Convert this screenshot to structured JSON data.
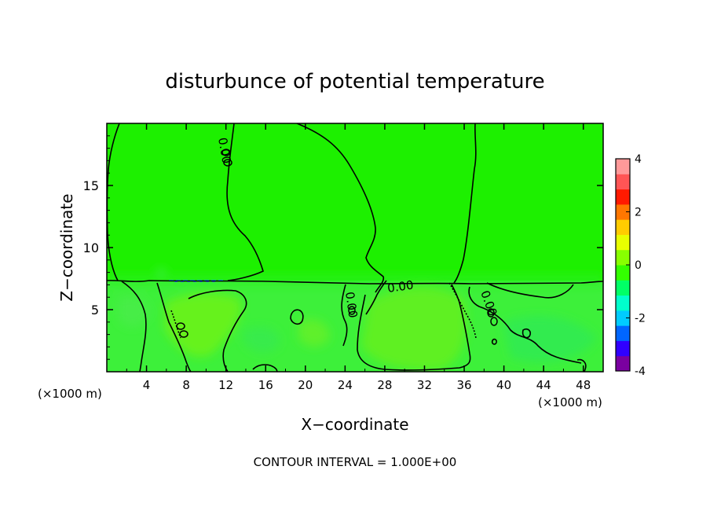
{
  "chart_data": {
    "type": "heatmap",
    "title": "disturbunce of potential temperature",
    "xlabel": "X−coordinate",
    "ylabel": "Z−coordinate",
    "x_unit_left": "(×1000 m)",
    "x_unit_right": "(×1000 m)",
    "xlim": [
      0,
      50
    ],
    "ylim": [
      0,
      20
    ],
    "x_ticks": [
      4,
      8,
      12,
      16,
      20,
      24,
      28,
      32,
      36,
      40,
      44,
      48
    ],
    "y_ticks": [
      5,
      10,
      15
    ],
    "colorbar": {
      "min": -4,
      "max": 4,
      "ticks": [
        4,
        2,
        0,
        -2,
        -4
      ],
      "colors": [
        "#7a00a0",
        "#3000ff",
        "#0066ff",
        "#00ccff",
        "#00ffcc",
        "#00ff66",
        "#33ff00",
        "#88ff00",
        "#e8ff00",
        "#ffcc00",
        "#ff7700",
        "#ff1a00",
        "#ff5555",
        "#ff9999"
      ]
    },
    "contour_labels": [
      {
        "text": "0.00",
        "x": 11.8,
        "z": 18.0,
        "angle": 80
      },
      {
        "text": "0.00",
        "x": 24.6,
        "z": 5.4,
        "angle": 80
      },
      {
        "text": "0.00",
        "x": 30.6,
        "z": 7.1,
        "angle": -8
      },
      {
        "text": "0.00",
        "x": 38.6,
        "z": 5.1,
        "angle": 70
      }
    ],
    "footer": "CONTOUR INTERVAL = 1.000E+00"
  }
}
